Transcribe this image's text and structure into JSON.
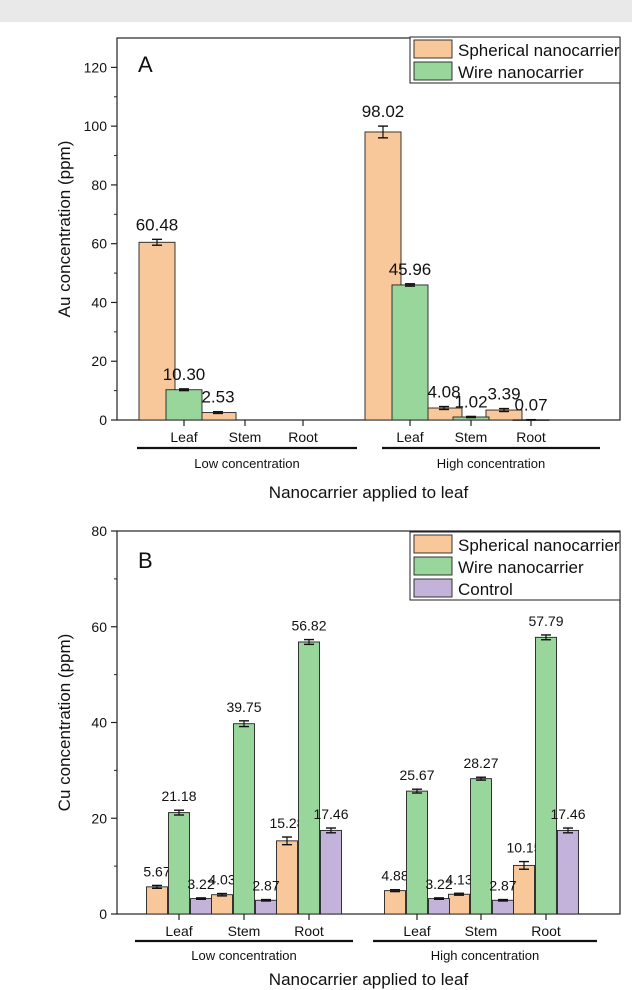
{
  "chart_data": [
    {
      "type": "bar",
      "panel": "A",
      "xlabel": "Nanocarrier applied to leaf",
      "ylabel": "Au concentration (ppm)",
      "ylim": [
        0,
        130
      ],
      "yticks": [
        0,
        20,
        40,
        60,
        80,
        100,
        120
      ],
      "categories": [
        "Leaf",
        "Stem",
        "Root",
        "Leaf",
        "Stem",
        "Root"
      ],
      "groups": [
        {
          "label": "Low concentration",
          "categories": [
            0,
            1,
            2
          ]
        },
        {
          "label": "High concentration",
          "categories": [
            3,
            4,
            5
          ]
        }
      ],
      "series": [
        {
          "name": "Spherical nanocarrier",
          "color": "#f9c89a",
          "values": [
            60.48,
            2.53,
            0,
            98.02,
            4.08,
            3.39
          ],
          "errors": [
            1.0,
            0.3,
            0,
            2.0,
            0.5,
            0.5
          ],
          "labels": [
            "60.48",
            "2.53",
            "",
            "98.02",
            "4.08",
            "3.39"
          ]
        },
        {
          "name": "Wire nanocarrier",
          "color": "#99d69c",
          "values": [
            10.3,
            0,
            0,
            45.96,
            1.02,
            0.07
          ],
          "errors": [
            0.3,
            0,
            0,
            0.4,
            0.2,
            0.05
          ],
          "labels": [
            "10.30",
            "",
            "",
            "45.96",
            "1.02",
            "0.07"
          ]
        }
      ],
      "legend": "top-right"
    },
    {
      "type": "bar",
      "panel": "B",
      "xlabel": "Nanocarrier applied to leaf",
      "ylabel": "Cu concentration (ppm)",
      "ylim": [
        0,
        80
      ],
      "yticks": [
        0,
        20,
        40,
        60,
        80
      ],
      "categories": [
        "Leaf",
        "Stem",
        "Root",
        "Leaf",
        "Stem",
        "Root"
      ],
      "groups": [
        {
          "label": "Low concentration",
          "categories": [
            0,
            1,
            2
          ]
        },
        {
          "label": "High concentration",
          "categories": [
            3,
            4,
            5
          ]
        }
      ],
      "series": [
        {
          "name": "Spherical nanocarrier",
          "color": "#f9c89a",
          "values": [
            5.67,
            4.03,
            15.28,
            4.88,
            4.13,
            10.15
          ],
          "errors": [
            0.3,
            0.25,
            0.8,
            0.2,
            0.2,
            0.8
          ],
          "labels": [
            "5.67",
            "4.03",
            "15.28",
            "4.88",
            "4.13",
            "10.15"
          ]
        },
        {
          "name": "Wire nanocarrier",
          "color": "#99d69c",
          "values": [
            21.18,
            39.75,
            56.82,
            25.67,
            28.27,
            57.79
          ],
          "errors": [
            0.5,
            0.6,
            0.5,
            0.4,
            0.3,
            0.5
          ],
          "labels": [
            "21.18",
            "39.75",
            "56.82",
            "25.67",
            "28.27",
            "57.79"
          ]
        },
        {
          "name": "Control",
          "color": "#c3b3da",
          "values": [
            3.22,
            2.87,
            17.46,
            3.22,
            2.87,
            17.46
          ],
          "errors": [
            0.15,
            0.15,
            0.5,
            0.15,
            0.15,
            0.5
          ],
          "labels": [
            "3.22",
            "2.87",
            "17.46",
            "3.22",
            "2.87",
            "17.46"
          ]
        }
      ],
      "legend": "top-right"
    }
  ]
}
